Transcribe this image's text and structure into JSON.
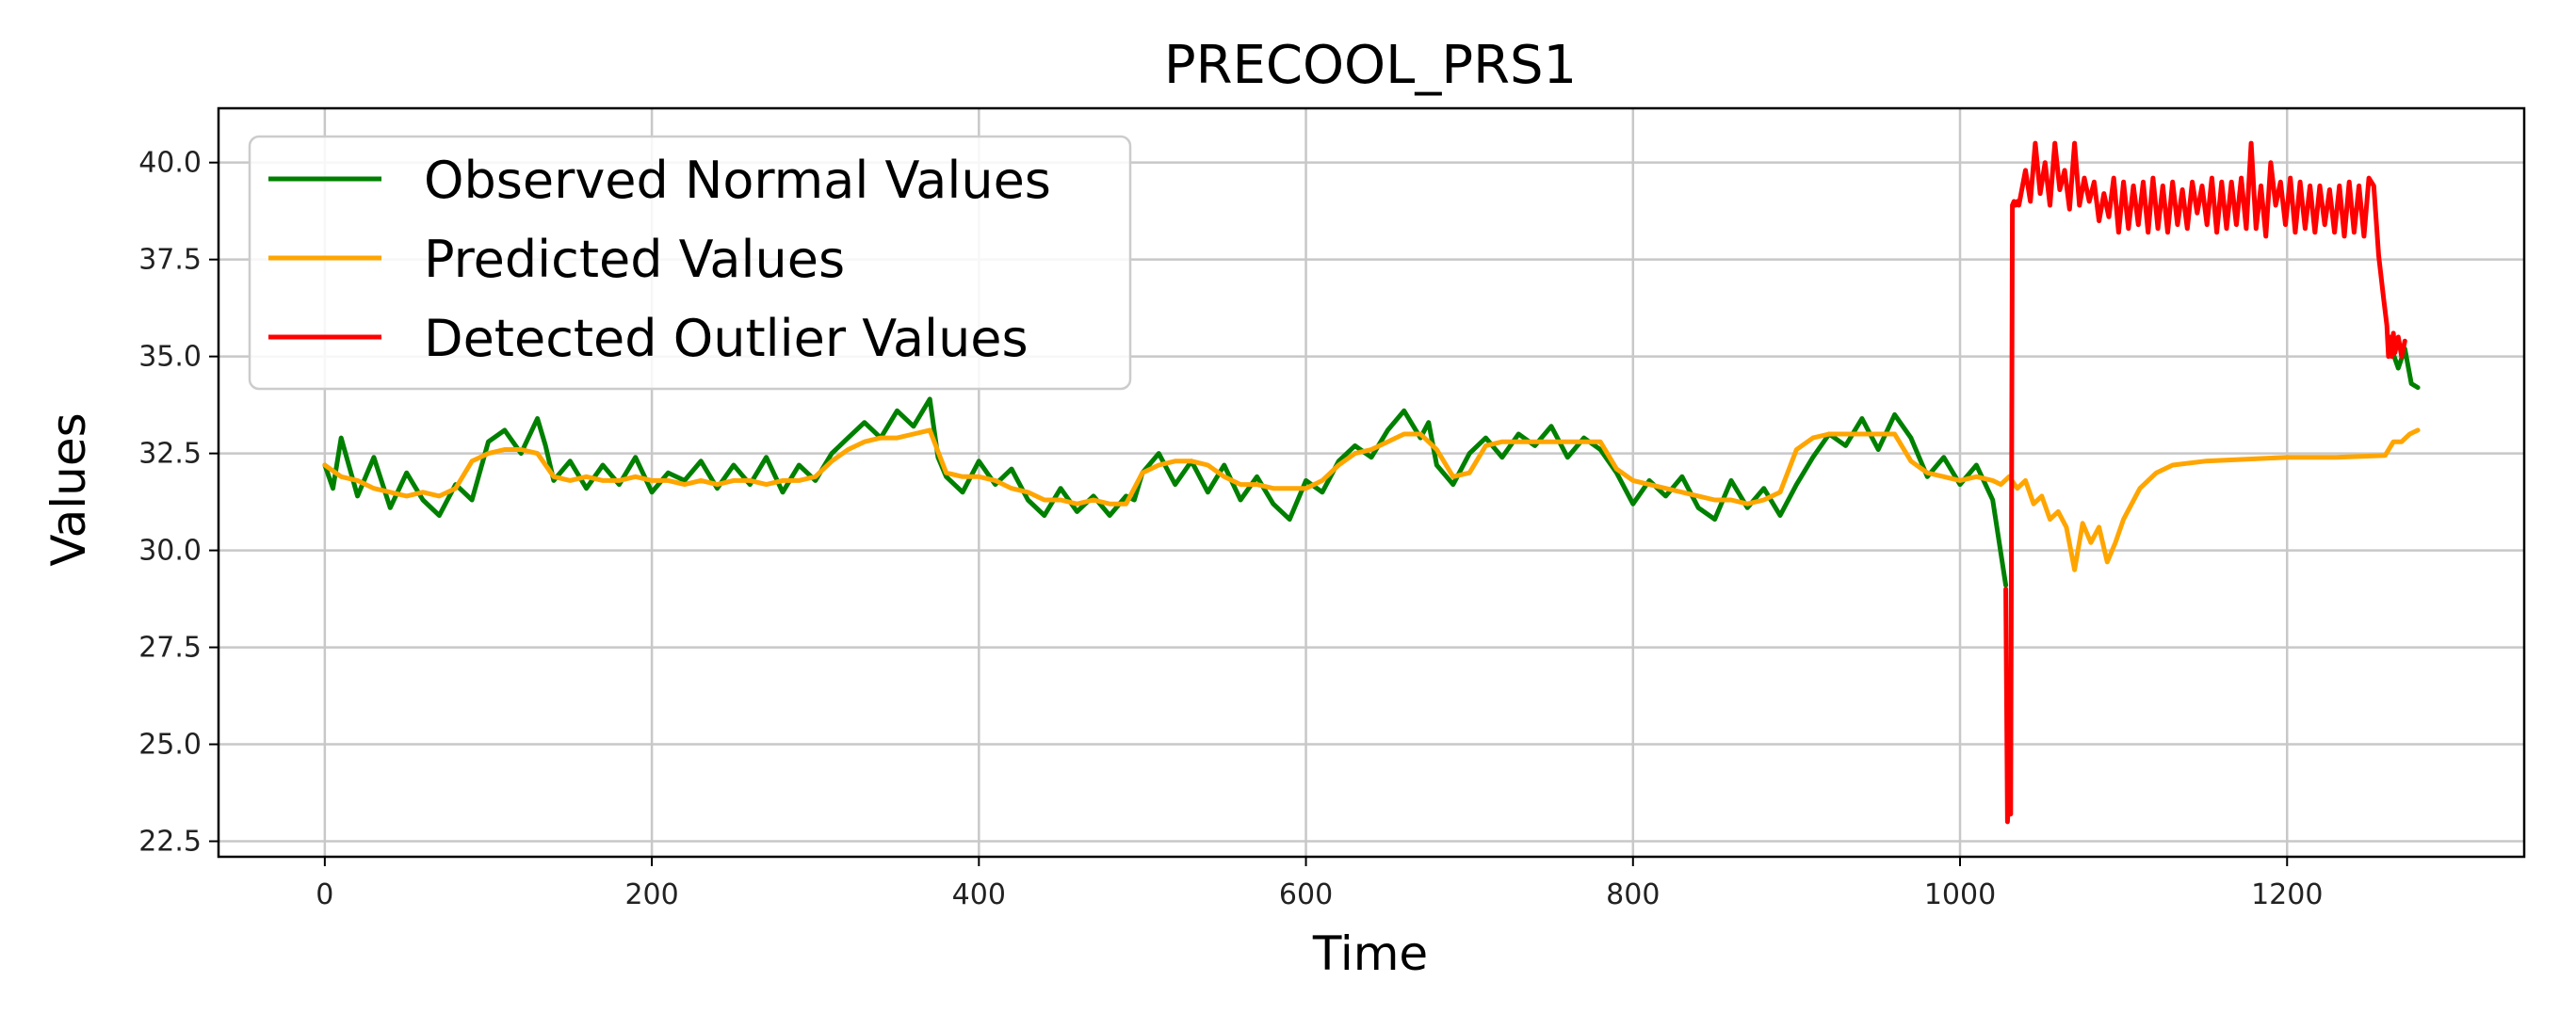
{
  "chart_data": {
    "type": "line",
    "title": "PRECOOL_PRS1",
    "xlabel": "Time",
    "ylabel": "Values",
    "xlim": [
      -65,
      1345
    ],
    "ylim": [
      22.1,
      41.4
    ],
    "xticks": [
      0,
      200,
      400,
      600,
      800,
      1000,
      1200
    ],
    "yticks": [
      22.5,
      25.0,
      27.5,
      30.0,
      32.5,
      35.0,
      37.5,
      40.0
    ],
    "xtick_labels": [
      "0",
      "200",
      "400",
      "600",
      "800",
      "1000",
      "1200"
    ],
    "ytick_labels": [
      "22.5",
      "25.0",
      "27.5",
      "30.0",
      "32.5",
      "35.0",
      "37.5",
      "40.0"
    ],
    "grid": true,
    "legend_position": "upper-left",
    "series": [
      {
        "name": "Observed Normal Values",
        "color": "#008000",
        "x": [
          0,
          5,
          10,
          20,
          30,
          40,
          50,
          60,
          70,
          80,
          90,
          100,
          110,
          120,
          130,
          135,
          140,
          150,
          160,
          170,
          180,
          190,
          200,
          210,
          220,
          230,
          240,
          250,
          260,
          270,
          280,
          290,
          300,
          310,
          320,
          330,
          340,
          350,
          360,
          370,
          375,
          380,
          390,
          400,
          410,
          420,
          430,
          440,
          450,
          460,
          470,
          480,
          490,
          495,
          500,
          510,
          520,
          530,
          540,
          550,
          560,
          570,
          580,
          590,
          600,
          610,
          620,
          630,
          640,
          650,
          660,
          670,
          675,
          680,
          690,
          700,
          710,
          720,
          730,
          740,
          750,
          760,
          770,
          780,
          790,
          800,
          810,
          820,
          830,
          840,
          850,
          860,
          870,
          880,
          890,
          900,
          910,
          920,
          930,
          940,
          950,
          960,
          970,
          980,
          990,
          1000,
          1010,
          1020,
          1028,
          null,
          1263,
          1268,
          1272,
          1276,
          1280
        ],
        "y": [
          32.2,
          31.6,
          32.9,
          31.4,
          32.4,
          31.1,
          32.0,
          31.3,
          30.9,
          31.7,
          31.3,
          32.8,
          33.1,
          32.5,
          33.4,
          32.7,
          31.8,
          32.3,
          31.6,
          32.2,
          31.7,
          32.4,
          31.5,
          32.0,
          31.8,
          32.3,
          31.6,
          32.2,
          31.7,
          32.4,
          31.5,
          32.2,
          31.8,
          32.5,
          32.9,
          33.3,
          32.9,
          33.6,
          33.2,
          33.9,
          32.4,
          31.9,
          31.5,
          32.3,
          31.7,
          32.1,
          31.3,
          30.9,
          31.6,
          31.0,
          31.4,
          30.9,
          31.4,
          31.3,
          32.0,
          32.5,
          31.7,
          32.3,
          31.5,
          32.2,
          31.3,
          31.9,
          31.2,
          30.8,
          31.8,
          31.5,
          32.3,
          32.7,
          32.4,
          33.1,
          33.6,
          32.9,
          33.3,
          32.2,
          31.7,
          32.5,
          32.9,
          32.4,
          33.0,
          32.7,
          33.2,
          32.4,
          32.9,
          32.6,
          32.0,
          31.2,
          31.8,
          31.4,
          31.9,
          31.1,
          30.8,
          31.8,
          31.1,
          31.6,
          30.9,
          31.7,
          32.4,
          33.0,
          32.7,
          33.4,
          32.6,
          33.5,
          32.9,
          31.9,
          32.4,
          31.7,
          32.2,
          31.3,
          29.1,
          null,
          35.3,
          34.7,
          35.2,
          34.3,
          34.2
        ]
      },
      {
        "name": "Predicted Values",
        "color": "#FFA500",
        "x": [
          0,
          10,
          20,
          30,
          40,
          50,
          60,
          70,
          80,
          90,
          100,
          110,
          120,
          130,
          140,
          150,
          160,
          170,
          180,
          190,
          200,
          210,
          220,
          230,
          240,
          250,
          260,
          270,
          280,
          290,
          300,
          310,
          320,
          330,
          340,
          350,
          360,
          370,
          380,
          390,
          400,
          410,
          420,
          430,
          440,
          450,
          460,
          470,
          480,
          490,
          500,
          510,
          520,
          530,
          540,
          550,
          560,
          570,
          580,
          590,
          600,
          610,
          620,
          630,
          640,
          650,
          660,
          670,
          680,
          690,
          700,
          710,
          720,
          730,
          740,
          750,
          760,
          770,
          780,
          790,
          800,
          810,
          820,
          830,
          840,
          850,
          860,
          870,
          880,
          890,
          900,
          910,
          920,
          930,
          940,
          950,
          960,
          970,
          980,
          990,
          1000,
          1010,
          1020,
          1025,
          1030,
          1035,
          1040,
          1045,
          1050,
          1055,
          1060,
          1065,
          1070,
          1075,
          1080,
          1085,
          1090,
          1095,
          1100,
          1110,
          1120,
          1130,
          1150,
          1175,
          1200,
          1230,
          1260,
          1265,
          1270,
          1275,
          1280
        ],
        "y": [
          32.2,
          31.9,
          31.8,
          31.6,
          31.5,
          31.4,
          31.5,
          31.4,
          31.6,
          32.3,
          32.5,
          32.6,
          32.6,
          32.5,
          31.9,
          31.8,
          31.9,
          31.8,
          31.8,
          31.9,
          31.8,
          31.8,
          31.7,
          31.8,
          31.7,
          31.8,
          31.8,
          31.7,
          31.8,
          31.8,
          31.9,
          32.3,
          32.6,
          32.8,
          32.9,
          32.9,
          33.0,
          33.1,
          32.0,
          31.9,
          31.9,
          31.8,
          31.6,
          31.5,
          31.3,
          31.3,
          31.2,
          31.3,
          31.2,
          31.2,
          32.0,
          32.2,
          32.3,
          32.3,
          32.2,
          31.9,
          31.7,
          31.7,
          31.6,
          31.6,
          31.6,
          31.8,
          32.2,
          32.5,
          32.6,
          32.8,
          33.0,
          33.0,
          32.6,
          31.9,
          32.0,
          32.7,
          32.8,
          32.8,
          32.8,
          32.8,
          32.8,
          32.8,
          32.8,
          32.1,
          31.8,
          31.7,
          31.6,
          31.5,
          31.4,
          31.3,
          31.3,
          31.2,
          31.3,
          31.5,
          32.6,
          32.9,
          33.0,
          33.0,
          33.0,
          33.0,
          33.0,
          32.3,
          32.0,
          31.9,
          31.8,
          31.9,
          31.8,
          31.7,
          31.9,
          31.6,
          31.8,
          31.2,
          31.4,
          30.8,
          31.0,
          30.6,
          29.5,
          30.7,
          30.2,
          30.6,
          29.7,
          30.2,
          30.8,
          31.6,
          32.0,
          32.2,
          32.3,
          32.35,
          32.4,
          32.4,
          32.45,
          32.8,
          32.8,
          33.0,
          33.1
        ]
      },
      {
        "name": "Detected Outlier Values",
        "color": "#FF0000",
        "x": [
          1028,
          1029,
          1030,
          1031,
          1032,
          1033,
          1034,
          1035,
          1036,
          1040,
          1043,
          1046,
          1049,
          1052,
          1055,
          1058,
          1061,
          1064,
          1067,
          1070,
          1073,
          1076,
          1079,
          1082,
          1085,
          1088,
          1091,
          1094,
          1097,
          1100,
          1103,
          1106,
          1109,
          1112,
          1115,
          1118,
          1121,
          1124,
          1127,
          1130,
          1133,
          1136,
          1139,
          1142,
          1145,
          1148,
          1151,
          1154,
          1157,
          1160,
          1163,
          1166,
          1169,
          1172,
          1175,
          1178,
          1181,
          1184,
          1187,
          1190,
          1193,
          1196,
          1199,
          1202,
          1205,
          1208,
          1211,
          1214,
          1217,
          1220,
          1223,
          1226,
          1229,
          1232,
          1235,
          1238,
          1241,
          1244,
          1247,
          1250,
          1253,
          1256,
          1259,
          1261,
          1262,
          1263,
          1264,
          1265,
          1266,
          1268,
          1270,
          1272
        ],
        "y": [
          29.0,
          23.0,
          24.0,
          23.2,
          38.9,
          39.0,
          38.9,
          39.0,
          38.9,
          39.8,
          39.0,
          40.5,
          39.2,
          40.0,
          38.9,
          40.5,
          39.3,
          39.8,
          38.8,
          40.5,
          38.9,
          39.6,
          39.0,
          39.5,
          38.5,
          39.2,
          38.6,
          39.6,
          38.2,
          39.5,
          38.3,
          39.4,
          38.4,
          39.5,
          38.2,
          39.6,
          38.3,
          39.4,
          38.2,
          39.5,
          38.4,
          39.3,
          38.3,
          39.5,
          38.7,
          39.4,
          38.4,
          39.6,
          38.2,
          39.5,
          38.3,
          39.5,
          38.4,
          39.6,
          38.3,
          40.5,
          38.3,
          39.4,
          38.1,
          40.0,
          38.9,
          39.5,
          38.4,
          39.6,
          38.2,
          39.5,
          38.3,
          39.4,
          38.2,
          39.4,
          38.4,
          39.3,
          38.2,
          39.4,
          38.1,
          39.5,
          38.2,
          39.4,
          38.1,
          39.6,
          39.4,
          37.6,
          36.5,
          35.8,
          35.0,
          35.5,
          35.0,
          35.6,
          35.1,
          35.5,
          35.0,
          35.4
        ]
      }
    ]
  }
}
